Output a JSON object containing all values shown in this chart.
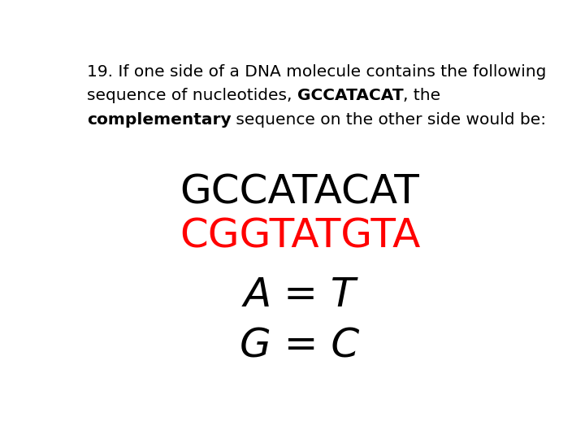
{
  "background_color": "#ffffff",
  "fig_width": 7.2,
  "fig_height": 5.4,
  "sequence_original": "GCCATACAT",
  "sequence_complement": "CGGTATGTA",
  "sequence_original_color": "#000000",
  "sequence_complement_color": "#ff0000",
  "equation_line1": "A = T",
  "equation_line2": "G = C",
  "equation_color": "#000000",
  "header_fontsize": 14.5,
  "sequence_fontsize": 36,
  "equation_fontsize": 36
}
